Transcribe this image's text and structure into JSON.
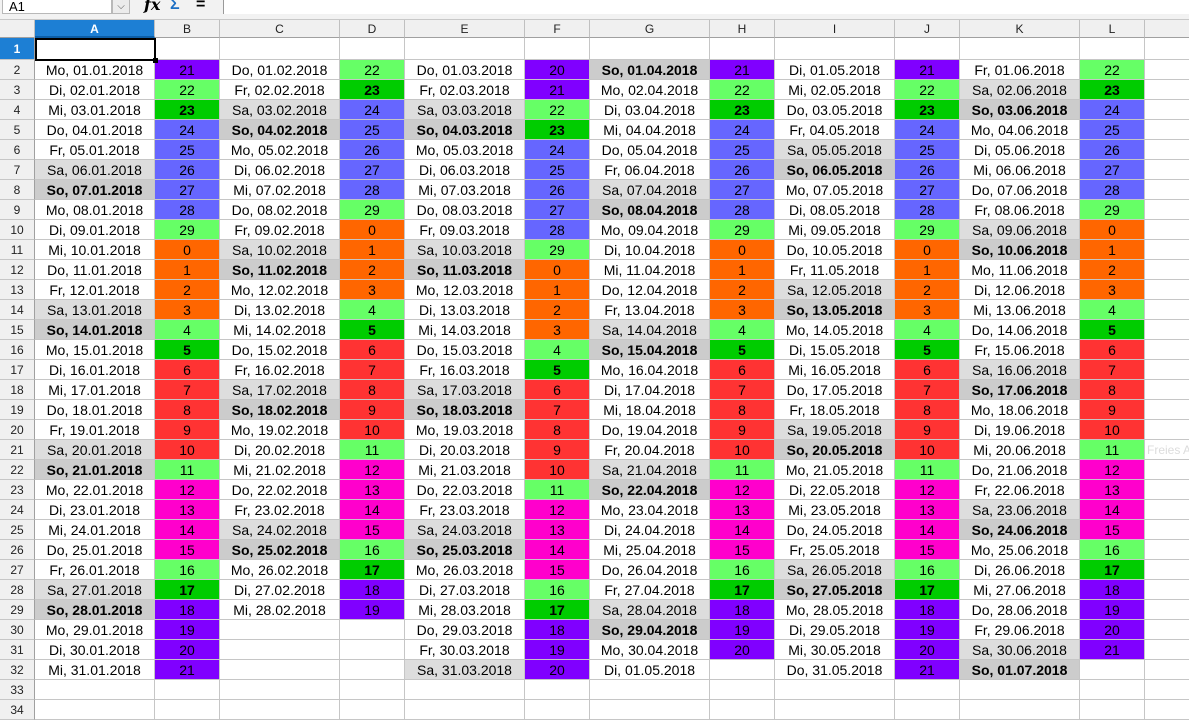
{
  "toolbar": {
    "name_box": "A1",
    "icons": [
      "chevron-down-icon",
      "function-wizard-icon",
      "sum-icon",
      "formula-equals-icon"
    ],
    "fx_glyph": "fx",
    "sum_glyph": "Σ",
    "equals_glyph": "=",
    "dropdown_glyph": "⌵",
    "formula_value": ""
  },
  "sheet": {
    "columns": [
      "A",
      "B",
      "C",
      "D",
      "E",
      "F",
      "G",
      "H",
      "I",
      "J",
      "K",
      "L",
      ""
    ],
    "selected_column": "A",
    "rows": [
      "1",
      "2",
      "3",
      "4",
      "5",
      "6",
      "7",
      "8",
      "9",
      "10",
      "11",
      "12",
      "13",
      "14",
      "15",
      "16",
      "17",
      "18",
      "19",
      "20",
      "21",
      "22",
      "23",
      "24",
      "25",
      "26",
      "27",
      "28",
      "29",
      "30",
      "31",
      "32",
      "33",
      "34"
    ],
    "selected_row": "1",
    "active_cell": "A1",
    "colors": {
      "orange": "#ff6600",
      "lightgreen": "#66ff66",
      "darkgreen": "#00cc00",
      "red": "#ff3333",
      "magenta": "#ff00cc",
      "purple": "#8000ff",
      "blue": "#6666ff",
      "saturday": "#dddddd",
      "sunday": "#cccccc"
    },
    "color_by_value": [
      "orange",
      "orange",
      "orange",
      "orange",
      "lightgreen",
      "darkgreen",
      "red",
      "red",
      "red",
      "red",
      "red",
      "lightgreen",
      "magenta",
      "magenta",
      "magenta",
      "magenta",
      "lightgreen",
      "darkgreen",
      "purple",
      "purple",
      "purple",
      "purple",
      "lightgreen",
      "darkgreen",
      "blue",
      "blue",
      "blue",
      "blue",
      "blue",
      "lightgreen"
    ],
    "overflow_text": "Freies A",
    "months": [
      {
        "dates": [
          "Mo, 01.01.2018",
          "Di, 02.01.2018",
          "Mi, 03.01.2018",
          "Do, 04.01.2018",
          "Fr, 05.01.2018",
          "Sa, 06.01.2018",
          "So, 07.01.2018",
          "Mo, 08.01.2018",
          "Di, 09.01.2018",
          "Mi, 10.01.2018",
          "Do, 11.01.2018",
          "Fr, 12.01.2018",
          "Sa, 13.01.2018",
          "So, 14.01.2018",
          "Mo, 15.01.2018",
          "Di, 16.01.2018",
          "Mi, 17.01.2018",
          "Do, 18.01.2018",
          "Fr, 19.01.2018",
          "Sa, 20.01.2018",
          "So, 21.01.2018",
          "Mo, 22.01.2018",
          "Di, 23.01.2018",
          "Mi, 24.01.2018",
          "Do, 25.01.2018",
          "Fr, 26.01.2018",
          "Sa, 27.01.2018",
          "So, 28.01.2018",
          "Mo, 29.01.2018",
          "Di, 30.01.2018",
          "Mi, 31.01.2018"
        ],
        "nums": [
          21,
          22,
          23,
          24,
          25,
          26,
          27,
          28,
          29,
          0,
          1,
          2,
          3,
          4,
          5,
          6,
          7,
          8,
          9,
          10,
          11,
          12,
          13,
          14,
          15,
          16,
          17,
          18,
          19,
          20,
          21
        ]
      },
      {
        "dates": [
          "Do, 01.02.2018",
          "Fr, 02.02.2018",
          "Sa, 03.02.2018",
          "So, 04.02.2018",
          "Mo, 05.02.2018",
          "Di, 06.02.2018",
          "Mi, 07.02.2018",
          "Do, 08.02.2018",
          "Fr, 09.02.2018",
          "Sa, 10.02.2018",
          "So, 11.02.2018",
          "Mo, 12.02.2018",
          "Di, 13.02.2018",
          "Mi, 14.02.2018",
          "Do, 15.02.2018",
          "Fr, 16.02.2018",
          "Sa, 17.02.2018",
          "So, 18.02.2018",
          "Mo, 19.02.2018",
          "Di, 20.02.2018",
          "Mi, 21.02.2018",
          "Do, 22.02.2018",
          "Fr, 23.02.2018",
          "Sa, 24.02.2018",
          "So, 25.02.2018",
          "Mo, 26.02.2018",
          "Di, 27.02.2018",
          "Mi, 28.02.2018"
        ],
        "nums": [
          22,
          23,
          24,
          25,
          26,
          27,
          28,
          29,
          0,
          1,
          2,
          3,
          4,
          5,
          6,
          7,
          8,
          9,
          10,
          11,
          12,
          13,
          14,
          15,
          16,
          17,
          18,
          19
        ]
      },
      {
        "dates": [
          "Do, 01.03.2018",
          "Fr, 02.03.2018",
          "Sa, 03.03.2018",
          "So, 04.03.2018",
          "Mo, 05.03.2018",
          "Di, 06.03.2018",
          "Mi, 07.03.2018",
          "Do, 08.03.2018",
          "Fr, 09.03.2018",
          "Sa, 10.03.2018",
          "So, 11.03.2018",
          "Mo, 12.03.2018",
          "Di, 13.03.2018",
          "Mi, 14.03.2018",
          "Do, 15.03.2018",
          "Fr, 16.03.2018",
          "Sa, 17.03.2018",
          "So, 18.03.2018",
          "Mo, 19.03.2018",
          "Di, 20.03.2018",
          "Mi, 21.03.2018",
          "Do, 22.03.2018",
          "Fr, 23.03.2018",
          "Sa, 24.03.2018",
          "So, 25.03.2018",
          "Mo, 26.03.2018",
          "Di, 27.03.2018",
          "Mi, 28.03.2018",
          "Do, 29.03.2018",
          "Fr, 30.03.2018",
          "Sa, 31.03.2018"
        ],
        "nums": [
          20,
          21,
          22,
          23,
          24,
          25,
          26,
          27,
          28,
          29,
          0,
          1,
          2,
          3,
          4,
          5,
          6,
          7,
          8,
          9,
          10,
          11,
          12,
          13,
          14,
          15,
          16,
          17,
          18,
          19,
          20
        ]
      },
      {
        "dates": [
          "So, 01.04.2018",
          "Mo, 02.04.2018",
          "Di, 03.04.2018",
          "Mi, 04.04.2018",
          "Do, 05.04.2018",
          "Fr, 06.04.2018",
          "Sa, 07.04.2018",
          "So, 08.04.2018",
          "Mo, 09.04.2018",
          "Di, 10.04.2018",
          "Mi, 11.04.2018",
          "Do, 12.04.2018",
          "Fr, 13.04.2018",
          "Sa, 14.04.2018",
          "So, 15.04.2018",
          "Mo, 16.04.2018",
          "Di, 17.04.2018",
          "Mi, 18.04.2018",
          "Do, 19.04.2018",
          "Fr, 20.04.2018",
          "Sa, 21.04.2018",
          "So, 22.04.2018",
          "Mo, 23.04.2018",
          "Di, 24.04.2018",
          "Mi, 25.04.2018",
          "Do, 26.04.2018",
          "Fr, 27.04.2018",
          "Sa, 28.04.2018",
          "So, 29.04.2018",
          "Mo, 30.04.2018",
          "Di, 01.05.2018"
        ],
        "nums": [
          21,
          22,
          23,
          24,
          25,
          26,
          27,
          28,
          29,
          0,
          1,
          2,
          3,
          4,
          5,
          6,
          7,
          8,
          9,
          10,
          11,
          12,
          13,
          14,
          15,
          16,
          17,
          18,
          19,
          20
        ]
      },
      {
        "dates": [
          "Di, 01.05.2018",
          "Mi, 02.05.2018",
          "Do, 03.05.2018",
          "Fr, 04.05.2018",
          "Sa, 05.05.2018",
          "So, 06.05.2018",
          "Mo, 07.05.2018",
          "Di, 08.05.2018",
          "Mi, 09.05.2018",
          "Do, 10.05.2018",
          "Fr, 11.05.2018",
          "Sa, 12.05.2018",
          "So, 13.05.2018",
          "Mo, 14.05.2018",
          "Di, 15.05.2018",
          "Mi, 16.05.2018",
          "Do, 17.05.2018",
          "Fr, 18.05.2018",
          "Sa, 19.05.2018",
          "So, 20.05.2018",
          "Mo, 21.05.2018",
          "Di, 22.05.2018",
          "Mi, 23.05.2018",
          "Do, 24.05.2018",
          "Fr, 25.05.2018",
          "Sa, 26.05.2018",
          "So, 27.05.2018",
          "Mo, 28.05.2018",
          "Di, 29.05.2018",
          "Mi, 30.05.2018",
          "Do, 31.05.2018"
        ],
        "nums": [
          21,
          22,
          23,
          24,
          25,
          26,
          27,
          28,
          29,
          0,
          1,
          2,
          3,
          4,
          5,
          6,
          7,
          8,
          9,
          10,
          11,
          12,
          13,
          14,
          15,
          16,
          17,
          18,
          19,
          20,
          21
        ]
      },
      {
        "dates": [
          "Fr, 01.06.2018",
          "Sa, 02.06.2018",
          "So, 03.06.2018",
          "Mo, 04.06.2018",
          "Di, 05.06.2018",
          "Mi, 06.06.2018",
          "Do, 07.06.2018",
          "Fr, 08.06.2018",
          "Sa, 09.06.2018",
          "So, 10.06.2018",
          "Mo, 11.06.2018",
          "Di, 12.06.2018",
          "Mi, 13.06.2018",
          "Do, 14.06.2018",
          "Fr, 15.06.2018",
          "Sa, 16.06.2018",
          "So, 17.06.2018",
          "Mo, 18.06.2018",
          "Di, 19.06.2018",
          "Mi, 20.06.2018",
          "Do, 21.06.2018",
          "Fr, 22.06.2018",
          "Sa, 23.06.2018",
          "So, 24.06.2018",
          "Mo, 25.06.2018",
          "Di, 26.06.2018",
          "Mi, 27.06.2018",
          "Do, 28.06.2018",
          "Fr, 29.06.2018",
          "Sa, 30.06.2018",
          "So, 01.07.2018"
        ],
        "nums": [
          22,
          23,
          24,
          25,
          26,
          27,
          28,
          29,
          0,
          1,
          2,
          3,
          4,
          5,
          6,
          7,
          8,
          9,
          10,
          11,
          12,
          13,
          14,
          15,
          16,
          17,
          18,
          19,
          20,
          21
        ]
      }
    ]
  }
}
